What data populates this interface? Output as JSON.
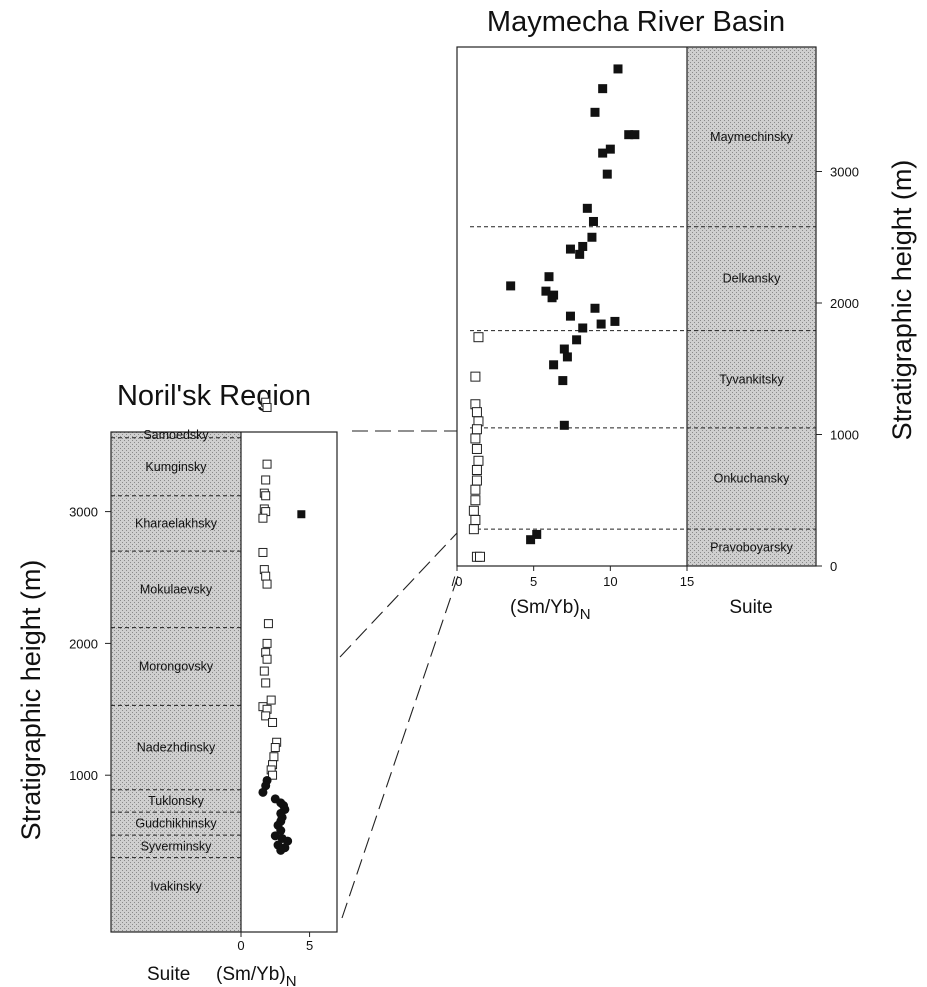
{
  "colors": {
    "suite_fill": "#c9c9c9",
    "filled_marker": "#111111",
    "open_marker_stroke": "#222222",
    "dashed_line": "#222222"
  },
  "chart_data": [
    {
      "type": "scatter",
      "title": "Maymecha River Basin",
      "xlabel": {
        "main": "(Sm/Yb)",
        "sub": "N"
      },
      "ylabel": "Stratigraphic height (m)",
      "suite_label": "Suite",
      "xlim": [
        0,
        15
      ],
      "xticks": [
        {
          "v": 0,
          "label": "/0"
        },
        {
          "v": 5,
          "label": "5"
        },
        {
          "v": 10,
          "label": "10"
        },
        {
          "v": 15,
          "label": "15"
        }
      ],
      "ylim": [
        0,
        4000
      ],
      "yticks": [
        0,
        1000,
        2000,
        3000
      ],
      "suites": [
        {
          "name": "Pravoboyarsky",
          "from": 0,
          "to": 280
        },
        {
          "name": "Onkuchansky",
          "from": 280,
          "to": 1050
        },
        {
          "name": "Tyvankitsky",
          "from": 1050,
          "to": 1790
        },
        {
          "name": "Delkansky",
          "from": 1790,
          "to": 2580
        },
        {
          "name": "Maymechinsky",
          "from": 2580,
          "to": 4000
        }
      ],
      "series": [
        {
          "marker": "filled-square",
          "points": [
            [
              10.5,
              3780
            ],
            [
              9.5,
              3630
            ],
            [
              9.0,
              3450
            ],
            [
              11.2,
              3280
            ],
            [
              11.6,
              3280
            ],
            [
              10.0,
              3170
            ],
            [
              9.5,
              3140
            ],
            [
              9.8,
              2980
            ],
            [
              8.5,
              2720
            ],
            [
              8.9,
              2620
            ],
            [
              8.8,
              2500
            ],
            [
              8.2,
              2430
            ],
            [
              7.4,
              2410
            ],
            [
              8.0,
              2370
            ],
            [
              6.0,
              2200
            ],
            [
              3.5,
              2130
            ],
            [
              5.8,
              2090
            ],
            [
              6.3,
              2060
            ],
            [
              6.2,
              2040
            ],
            [
              9.0,
              1960
            ],
            [
              7.4,
              1900
            ],
            [
              10.3,
              1860
            ],
            [
              9.4,
              1840
            ],
            [
              8.2,
              1810
            ],
            [
              7.8,
              1720
            ],
            [
              7.0,
              1650
            ],
            [
              7.2,
              1590
            ],
            [
              6.3,
              1530
            ],
            [
              6.9,
              1410
            ],
            [
              7.0,
              1070
            ],
            [
              5.2,
              240
            ],
            [
              4.8,
              200
            ]
          ]
        },
        {
          "marker": "open-square",
          "points": [
            [
              1.4,
              1740
            ],
            [
              1.2,
              1440
            ],
            [
              1.2,
              1230
            ],
            [
              1.3,
              1170
            ],
            [
              1.4,
              1100
            ],
            [
              1.3,
              1040
            ],
            [
              1.2,
              970
            ],
            [
              1.3,
              890
            ],
            [
              1.4,
              800
            ],
            [
              1.3,
              730
            ],
            [
              1.3,
              650
            ],
            [
              1.2,
              580
            ],
            [
              1.2,
              500
            ],
            [
              1.1,
              420
            ],
            [
              1.2,
              350
            ],
            [
              1.1,
              280
            ],
            [
              1.3,
              70
            ],
            [
              1.5,
              70
            ]
          ]
        }
      ]
    },
    {
      "type": "scatter",
      "title": "Noril'sk Region",
      "xlabel": {
        "main": "(Sm/Yb)",
        "sub": "N"
      },
      "ylabel": "Stratigraphic height (m)",
      "suite_label": "Suite",
      "xlim": [
        0,
        7
      ],
      "xticks": [
        {
          "v": 0,
          "label": "0"
        },
        {
          "v": 5,
          "label": "5"
        }
      ],
      "ylim": [
        -65,
        4015
      ],
      "yticks": [
        1000,
        2000,
        3000
      ],
      "suites": [
        {
          "name": "Ivakinsky",
          "from": -65,
          "to": 375
        },
        {
          "name": "Syverminsky",
          "from": 375,
          "to": 545
        },
        {
          "name": "Gudchikhinsky",
          "from": 545,
          "to": 720
        },
        {
          "name": "Tuklonsky",
          "from": 720,
          "to": 890
        },
        {
          "name": "Nadezhdinsky",
          "from": 890,
          "to": 1530
        },
        {
          "name": "Morongovsky",
          "from": 1530,
          "to": 2120
        },
        {
          "name": "Mokulaevsky",
          "from": 2120,
          "to": 2700
        },
        {
          "name": "Kharaelakhsky",
          "from": 2700,
          "to": 3120
        },
        {
          "name": "Kumginsky",
          "from": 3120,
          "to": 3560
        },
        {
          "name": "Samoedsky",
          "from": 3560,
          "to": 4015
        }
      ],
      "series": [
        {
          "marker": "open-square",
          "points": [
            [
              1.8,
              3830
            ],
            [
              1.9,
              3790
            ],
            [
              1.9,
              3360
            ],
            [
              1.8,
              3240
            ],
            [
              1.7,
              3140
            ],
            [
              1.8,
              3120
            ],
            [
              1.7,
              3020
            ],
            [
              1.8,
              3000
            ],
            [
              1.6,
              2950
            ],
            [
              1.6,
              2690
            ],
            [
              1.7,
              2560
            ],
            [
              1.8,
              2510
            ],
            [
              1.9,
              2450
            ],
            [
              2.0,
              2150
            ],
            [
              1.9,
              2000
            ],
            [
              1.8,
              1930
            ],
            [
              1.9,
              1880
            ],
            [
              1.7,
              1790
            ],
            [
              1.8,
              1700
            ],
            [
              2.2,
              1570
            ],
            [
              1.6,
              1520
            ],
            [
              1.9,
              1500
            ],
            [
              1.8,
              1450
            ],
            [
              2.3,
              1400
            ],
            [
              2.6,
              1250
            ],
            [
              2.5,
              1210
            ],
            [
              2.4,
              1140
            ],
            [
              2.3,
              1080
            ],
            [
              2.2,
              1040
            ],
            [
              2.3,
              1000
            ]
          ]
        },
        {
          "marker": "filled-square",
          "points": [
            [
              4.4,
              2980
            ]
          ]
        },
        {
          "marker": "filled-circle",
          "points": [
            [
              1.9,
              960
            ],
            [
              1.8,
              920
            ],
            [
              1.6,
              870
            ],
            [
              2.5,
              820
            ],
            [
              2.9,
              790
            ],
            [
              3.1,
              770
            ],
            [
              3.2,
              740
            ],
            [
              2.9,
              710
            ],
            [
              3.0,
              680
            ],
            [
              2.9,
              650
            ],
            [
              2.7,
              620
            ],
            [
              2.9,
              580
            ],
            [
              2.5,
              540
            ],
            [
              3.0,
              520
            ],
            [
              3.4,
              500
            ],
            [
              2.7,
              470
            ],
            [
              3.2,
              450
            ],
            [
              2.9,
              430
            ]
          ]
        }
      ]
    }
  ]
}
